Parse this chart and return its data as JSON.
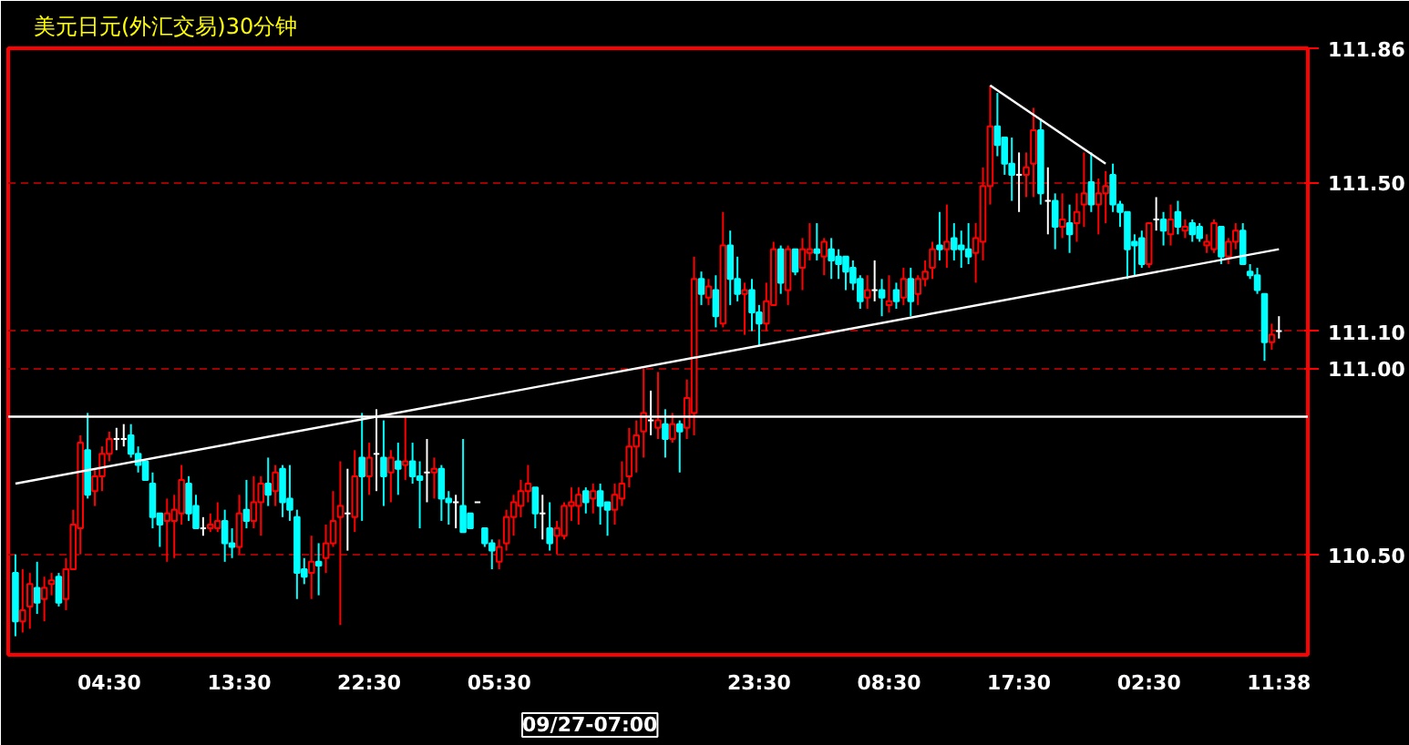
{
  "chart_data": {
    "type": "candlestick",
    "title": "美元日元(外汇交易)30分钟",
    "categories": [
      null,
      null,
      null,
      null,
      null,
      null,
      null,
      null,
      null,
      null,
      null,
      null,
      null,
      "04:30",
      null,
      null,
      null,
      null,
      null,
      null,
      null,
      null,
      null,
      null,
      null,
      null,
      null,
      null,
      null,
      null,
      null,
      "13:30",
      null,
      null,
      null,
      null,
      null,
      null,
      null,
      null,
      null,
      null,
      null,
      null,
      null,
      null,
      null,
      null,
      null,
      "22:30",
      null,
      null,
      null,
      null,
      null,
      null,
      null,
      null,
      null,
      null,
      null,
      null,
      null,
      null,
      null,
      null,
      null,
      "05:30",
      null,
      null,
      null,
      null,
      null,
      null,
      null,
      null,
      null,
      null,
      null,
      null,
      null,
      null,
      null,
      null,
      null,
      null,
      null,
      null,
      null,
      null,
      null,
      null,
      null,
      null,
      null,
      null,
      null,
      null,
      null,
      null,
      null,
      null,
      null,
      "23:30",
      null,
      null,
      null,
      null,
      null,
      null,
      null,
      null,
      null,
      null,
      null,
      null,
      null,
      null,
      null,
      null,
      null,
      "08:30",
      null,
      null,
      null,
      null,
      null,
      null,
      null,
      null,
      null,
      null,
      null,
      null,
      null,
      null,
      null,
      null,
      null,
      "17:30",
      null,
      null,
      null,
      null,
      null,
      null,
      null,
      null,
      null,
      null,
      null,
      null,
      null,
      null,
      null,
      null,
      null,
      "02:30",
      null,
      null,
      null,
      null,
      null,
      null,
      null,
      null,
      null,
      null,
      null,
      null,
      null,
      null,
      null,
      null,
      null,
      "11:38"
    ],
    "ohlc": [
      [
        110.45,
        110.5,
        110.28,
        110.32
      ],
      [
        110.32,
        110.46,
        110.29,
        110.35
      ],
      [
        110.36,
        110.45,
        110.3,
        110.42
      ],
      [
        110.41,
        110.48,
        110.34,
        110.37
      ],
      [
        110.38,
        110.44,
        110.32,
        110.41
      ],
      [
        110.42,
        110.45,
        110.39,
        110.43
      ],
      [
        110.44,
        110.45,
        110.36,
        110.37
      ],
      [
        110.38,
        110.49,
        110.35,
        110.46
      ],
      [
        110.46,
        110.62,
        110.46,
        110.58
      ],
      [
        110.57,
        110.82,
        110.5,
        110.8
      ],
      [
        110.78,
        110.88,
        110.65,
        110.66
      ],
      [
        110.67,
        110.73,
        110.63,
        110.71
      ],
      [
        110.71,
        110.79,
        110.67,
        110.77
      ],
      [
        110.77,
        110.83,
        110.75,
        110.81
      ],
      [
        110.81,
        110.84,
        110.78,
        110.81
      ],
      [
        110.81,
        110.85,
        110.79,
        110.81
      ],
      [
        110.82,
        110.85,
        110.76,
        110.77
      ],
      [
        110.77,
        110.79,
        110.72,
        110.74
      ],
      [
        110.75,
        110.75,
        110.7,
        110.7
      ],
      [
        110.69,
        110.72,
        110.57,
        110.6
      ],
      [
        110.61,
        110.61,
        110.52,
        110.58
      ],
      [
        110.59,
        110.65,
        110.48,
        110.61
      ],
      [
        110.59,
        110.66,
        110.49,
        110.62
      ],
      [
        110.61,
        110.74,
        110.58,
        110.7
      ],
      [
        110.69,
        110.71,
        110.59,
        110.61
      ],
      [
        110.63,
        110.66,
        110.57,
        110.57
      ],
      [
        110.57,
        110.6,
        110.55,
        110.57
      ],
      [
        110.57,
        110.61,
        110.56,
        110.58
      ],
      [
        110.57,
        110.64,
        110.56,
        110.59
      ],
      [
        110.59,
        110.62,
        110.48,
        110.53
      ],
      [
        110.53,
        110.57,
        110.49,
        110.52
      ],
      [
        110.52,
        110.66,
        110.5,
        110.61
      ],
      [
        110.62,
        110.7,
        110.57,
        110.59
      ],
      [
        110.59,
        110.71,
        110.57,
        110.64
      ],
      [
        110.64,
        110.71,
        110.55,
        110.69
      ],
      [
        110.69,
        110.76,
        110.63,
        110.66
      ],
      [
        110.67,
        110.74,
        110.63,
        110.72
      ],
      [
        110.73,
        110.74,
        110.6,
        110.64
      ],
      [
        110.65,
        110.74,
        110.59,
        110.62
      ],
      [
        110.6,
        110.62,
        110.38,
        110.45
      ],
      [
        110.46,
        110.49,
        110.42,
        110.44
      ],
      [
        110.45,
        110.55,
        110.38,
        110.48
      ],
      [
        110.48,
        110.53,
        110.39,
        110.47
      ],
      [
        110.49,
        110.58,
        110.45,
        110.53
      ],
      [
        110.53,
        110.67,
        110.52,
        110.59
      ],
      [
        110.6,
        110.75,
        110.31,
        110.63
      ],
      [
        110.61,
        110.73,
        110.51,
        110.61
      ],
      [
        110.6,
        110.78,
        110.56,
        110.71
      ],
      [
        110.76,
        110.88,
        110.59,
        110.71
      ],
      [
        110.71,
        110.8,
        110.66,
        110.76
      ],
      [
        110.77,
        110.89,
        110.67,
        110.77
      ],
      [
        110.76,
        110.86,
        110.63,
        110.71
      ],
      [
        110.72,
        110.78,
        110.64,
        110.76
      ],
      [
        110.75,
        110.8,
        110.66,
        110.73
      ],
      [
        110.74,
        110.87,
        110.7,
        110.75
      ],
      [
        110.75,
        110.8,
        110.69,
        110.71
      ],
      [
        110.71,
        110.75,
        110.57,
        110.7
      ],
      [
        110.72,
        110.81,
        110.64,
        110.72
      ],
      [
        110.72,
        110.76,
        110.65,
        110.73
      ],
      [
        110.73,
        110.74,
        110.59,
        110.65
      ],
      [
        110.65,
        110.67,
        110.58,
        110.64
      ],
      [
        110.64,
        110.66,
        110.57,
        110.64
      ],
      [
        110.63,
        110.81,
        110.56,
        110.56
      ],
      [
        110.61,
        110.61,
        110.57,
        110.57
      ],
      [
        110.64,
        110.64,
        110.64,
        110.64
      ],
      [
        110.57,
        110.57,
        110.52,
        110.53
      ],
      [
        110.53,
        110.54,
        110.46,
        110.51
      ],
      [
        110.48,
        110.54,
        110.46,
        110.52
      ],
      [
        110.53,
        110.62,
        110.51,
        110.6
      ],
      [
        110.6,
        110.66,
        110.55,
        110.64
      ],
      [
        110.63,
        110.7,
        110.6,
        110.67
      ],
      [
        110.67,
        110.74,
        110.64,
        110.69
      ],
      [
        110.68,
        110.68,
        110.57,
        110.61
      ],
      [
        110.61,
        110.66,
        110.54,
        110.61
      ],
      [
        110.57,
        110.64,
        110.51,
        110.53
      ],
      [
        110.55,
        110.59,
        110.5,
        110.57
      ],
      [
        110.55,
        110.64,
        110.54,
        110.63
      ],
      [
        110.63,
        110.68,
        110.59,
        110.64
      ],
      [
        110.63,
        110.68,
        110.58,
        110.66
      ],
      [
        110.67,
        110.68,
        110.61,
        110.64
      ],
      [
        110.65,
        110.69,
        110.61,
        110.67
      ],
      [
        110.67,
        110.69,
        110.58,
        110.63
      ],
      [
        110.64,
        110.64,
        110.55,
        110.62
      ],
      [
        110.62,
        110.69,
        110.58,
        110.66
      ],
      [
        110.65,
        110.75,
        110.63,
        110.69
      ],
      [
        110.71,
        110.84,
        110.68,
        110.79
      ],
      [
        110.79,
        110.86,
        110.72,
        110.82
      ],
      [
        110.83,
        111.0,
        110.76,
        110.88
      ],
      [
        110.86,
        110.94,
        110.82,
        110.86
      ],
      [
        110.84,
        110.99,
        110.81,
        110.86
      ],
      [
        110.85,
        110.89,
        110.76,
        110.81
      ],
      [
        110.81,
        110.88,
        110.8,
        110.85
      ],
      [
        110.85,
        110.86,
        110.72,
        110.83
      ],
      [
        110.84,
        110.97,
        110.81,
        110.92
      ],
      [
        110.88,
        111.3,
        110.82,
        111.24
      ],
      [
        111.24,
        111.26,
        111.17,
        111.2
      ],
      [
        111.19,
        111.24,
        111.17,
        111.22
      ],
      [
        111.21,
        111.25,
        111.11,
        111.14
      ],
      [
        111.12,
        111.42,
        111.11,
        111.33
      ],
      [
        111.33,
        111.37,
        111.17,
        111.24
      ],
      [
        111.24,
        111.3,
        111.18,
        111.2
      ],
      [
        111.2,
        111.23,
        111.09,
        111.21
      ],
      [
        111.21,
        111.24,
        111.1,
        111.15
      ],
      [
        111.15,
        111.17,
        111.06,
        111.12
      ],
      [
        111.12,
        111.23,
        111.1,
        111.18
      ],
      [
        111.17,
        111.34,
        111.17,
        111.32
      ],
      [
        111.32,
        111.33,
        111.2,
        111.23
      ],
      [
        111.21,
        111.33,
        111.17,
        111.32
      ],
      [
        111.32,
        111.32,
        111.25,
        111.26
      ],
      [
        111.27,
        111.35,
        111.21,
        111.32
      ],
      [
        111.31,
        111.39,
        111.29,
        111.32
      ],
      [
        111.32,
        111.39,
        111.29,
        111.31
      ],
      [
        111.3,
        111.35,
        111.25,
        111.34
      ],
      [
        111.32,
        111.35,
        111.24,
        111.29
      ],
      [
        111.3,
        111.32,
        111.24,
        111.28
      ],
      [
        111.3,
        111.3,
        111.21,
        111.26
      ],
      [
        111.27,
        111.29,
        111.21,
        111.23
      ],
      [
        111.24,
        111.25,
        111.16,
        111.18
      ],
      [
        111.19,
        111.25,
        111.16,
        111.21
      ],
      [
        111.21,
        111.29,
        111.18,
        111.21
      ],
      [
        111.21,
        111.24,
        111.14,
        111.19
      ],
      [
        111.17,
        111.25,
        111.15,
        111.18
      ],
      [
        111.21,
        111.23,
        111.16,
        111.18
      ],
      [
        111.19,
        111.27,
        111.17,
        111.24
      ],
      [
        111.24,
        111.27,
        111.14,
        111.18
      ],
      [
        111.2,
        111.25,
        111.17,
        111.24
      ],
      [
        111.24,
        111.29,
        111.22,
        111.26
      ],
      [
        111.27,
        111.34,
        111.24,
        111.32
      ],
      [
        111.33,
        111.42,
        111.29,
        111.32
      ],
      [
        111.32,
        111.44,
        111.27,
        111.34
      ],
      [
        111.35,
        111.39,
        111.29,
        111.32
      ],
      [
        111.33,
        111.37,
        111.27,
        111.32
      ],
      [
        111.32,
        111.39,
        111.28,
        111.3
      ],
      [
        111.31,
        111.39,
        111.23,
        111.35
      ],
      [
        111.34,
        111.54,
        111.29,
        111.49
      ],
      [
        111.49,
        111.76,
        111.44,
        111.65
      ],
      [
        111.65,
        111.74,
        111.57,
        111.6
      ],
      [
        111.62,
        111.62,
        111.52,
        111.55
      ],
      [
        111.55,
        111.62,
        111.45,
        111.52
      ],
      [
        111.52,
        111.58,
        111.42,
        111.52
      ],
      [
        111.52,
        111.58,
        111.46,
        111.54
      ],
      [
        111.55,
        111.7,
        111.46,
        111.64
      ],
      [
        111.64,
        111.67,
        111.44,
        111.47
      ],
      [
        111.45,
        111.54,
        111.36,
        111.45
      ],
      [
        111.45,
        111.47,
        111.32,
        111.38
      ],
      [
        111.38,
        111.47,
        111.35,
        111.4
      ],
      [
        111.39,
        111.44,
        111.31,
        111.36
      ],
      [
        111.39,
        111.47,
        111.34,
        111.42
      ],
      [
        111.44,
        111.58,
        111.38,
        111.47
      ],
      [
        111.5,
        111.58,
        111.42,
        111.44
      ],
      [
        111.44,
        111.51,
        111.36,
        111.47
      ],
      [
        111.47,
        111.53,
        111.39,
        111.49
      ],
      [
        111.52,
        111.55,
        111.42,
        111.44
      ],
      [
        111.44,
        111.45,
        111.38,
        111.42
      ],
      [
        111.42,
        111.42,
        111.24,
        111.32
      ],
      [
        111.34,
        111.36,
        111.25,
        111.33
      ],
      [
        111.35,
        111.37,
        111.27,
        111.28
      ],
      [
        111.28,
        111.39,
        111.27,
        111.39
      ],
      [
        111.4,
        111.46,
        111.37,
        111.4
      ],
      [
        111.4,
        111.42,
        111.33,
        111.37
      ],
      [
        111.36,
        111.44,
        111.33,
        111.4
      ],
      [
        111.42,
        111.45,
        111.36,
        111.38
      ],
      [
        111.37,
        111.4,
        111.35,
        111.38
      ],
      [
        111.39,
        111.4,
        111.34,
        111.36
      ],
      [
        111.38,
        111.39,
        111.34,
        111.35
      ],
      [
        111.33,
        111.36,
        111.31,
        111.34
      ],
      [
        111.32,
        111.4,
        111.31,
        111.39
      ],
      [
        111.38,
        111.38,
        111.28,
        111.3
      ],
      [
        111.3,
        111.35,
        111.28,
        111.34
      ],
      [
        111.34,
        111.39,
        111.32,
        111.37
      ],
      [
        111.37,
        111.39,
        111.28,
        111.28
      ],
      [
        111.26,
        111.28,
        111.24,
        111.25
      ],
      [
        111.25,
        111.27,
        111.2,
        111.21
      ],
      [
        111.2,
        111.2,
        111.02,
        111.07
      ],
      [
        111.07,
        111.12,
        111.05,
        111.09
      ],
      [
        111.1,
        111.14,
        111.08,
        111.1
      ]
    ],
    "series": [
      {
        "type": "line",
        "color": "#ffffff",
        "values": [
          110.69,
          null,
          null,
          null,
          null,
          null,
          null,
          null,
          null,
          null,
          null,
          null,
          null,
          null,
          null,
          null,
          null,
          null,
          null,
          null,
          null,
          null,
          null,
          null,
          null,
          null,
          null,
          null,
          null,
          null,
          null,
          null,
          null,
          null,
          null,
          null,
          null,
          null,
          null,
          null,
          null,
          null,
          null,
          null,
          null,
          null,
          null,
          null,
          null,
          null,
          null,
          null,
          null,
          null,
          null,
          null,
          null,
          null,
          null,
          null,
          null,
          null,
          null,
          null,
          null,
          null,
          null,
          null,
          null,
          null,
          null,
          null,
          null,
          null,
          null,
          null,
          null,
          null,
          null,
          null,
          null,
          null,
          null,
          null,
          null,
          null,
          null,
          null,
          null,
          null,
          null,
          null,
          null,
          null,
          null,
          null,
          null,
          null,
          null,
          null,
          null,
          null,
          null,
          null,
          null,
          null,
          null,
          null,
          null,
          null,
          null,
          null,
          null,
          null,
          null,
          null,
          null,
          null,
          null,
          null,
          null,
          null,
          null,
          null,
          null,
          null,
          null,
          null,
          null,
          null,
          null,
          null,
          null,
          null,
          null,
          null,
          null,
          null,
          null,
          null,
          null,
          null,
          null,
          null,
          null,
          null,
          null,
          null,
          null,
          null,
          null,
          null,
          null,
          null,
          null,
          null,
          null,
          null,
          null,
          null,
          null,
          null,
          null,
          null,
          null,
          null,
          null,
          null,
          null,
          null,
          null,
          null,
          null,
          null,
          null,
          111.32
        ]
      },
      {
        "type": "line",
        "color": "#ffffff",
        "values": [
          null,
          null,
          null,
          null,
          null,
          null,
          null,
          null,
          null,
          null,
          null,
          null,
          null,
          null,
          null,
          null,
          null,
          null,
          null,
          null,
          null,
          null,
          null,
          null,
          null,
          null,
          null,
          null,
          null,
          null,
          null,
          null,
          null,
          null,
          null,
          null,
          null,
          null,
          null,
          null,
          null,
          null,
          null,
          null,
          null,
          null,
          null,
          null,
          null,
          null,
          null,
          null,
          null,
          null,
          null,
          null,
          null,
          null,
          null,
          null,
          null,
          null,
          null,
          null,
          null,
          null,
          null,
          null,
          null,
          null,
          null,
          null,
          null,
          null,
          null,
          null,
          null,
          null,
          null,
          null,
          null,
          null,
          null,
          null,
          null,
          null,
          null,
          null,
          null,
          null,
          null,
          null,
          null,
          null,
          null,
          null,
          null,
          null,
          null,
          null,
          null,
          null,
          null,
          null,
          null,
          null,
          null,
          null,
          null,
          null,
          null,
          null,
          null,
          null,
          null,
          null,
          null,
          null,
          null,
          null,
          null,
          null,
          null,
          null,
          null,
          null,
          null,
          null,
          null,
          null,
          null,
          null,
          null,
          null,
          null,
          111.76,
          null,
          null,
          null,
          null,
          null,
          null,
          null,
          null,
          null,
          null,
          null,
          null,
          null,
          null,
          null,
          111.55,
          null,
          null,
          null,
          null,
          null,
          null,
          null,
          null,
          null,
          null,
          null,
          null,
          null,
          null,
          null,
          null,
          null,
          null,
          null,
          null,
          null,
          null,
          null,
          null
        ]
      }
    ],
    "ref_lines": [
      {
        "axis": "y",
        "value": 110.87,
        "color": "#ffffff"
      }
    ],
    "annotations": [
      "09/27-07:00"
    ],
    "ylim": [
      110.23,
      111.86
    ],
    "yticks": [
      {
        "value": 110.5,
        "label": "110.50"
      },
      {
        "value": 111.0,
        "label": "111.00"
      },
      {
        "value": 111.1,
        "label": "111.10"
      },
      {
        "value": 111.5,
        "label": "111.50"
      },
      {
        "value": 111.86,
        "label": "111.86"
      }
    ],
    "grid": "y"
  }
}
